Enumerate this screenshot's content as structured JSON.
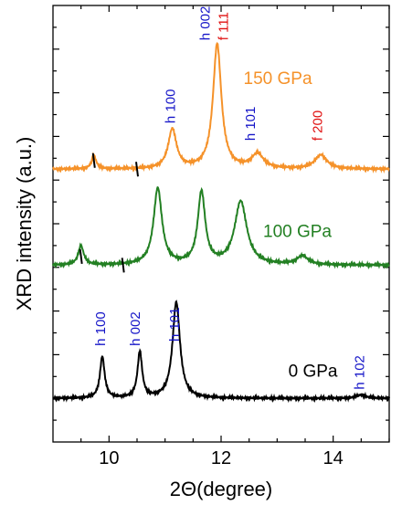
{
  "chart_data": {
    "type": "line",
    "xlabel": "2Θ(degree)",
    "ylabel": "XRD intensity (a.u.)",
    "xlim": [
      9.0,
      15.0
    ],
    "ylim": [
      0,
      100
    ],
    "xticks": [
      10,
      12,
      14
    ],
    "x_tick_labels": [
      "10",
      "12",
      "14"
    ],
    "grid": false,
    "series": [
      {
        "name": "0 GPa",
        "color": "#000000",
        "baseline": 10,
        "peaks": [
          {
            "center": 9.88,
            "height": 9.5,
            "width": 0.05
          },
          {
            "center": 10.55,
            "height": 10.5,
            "width": 0.05
          },
          {
            "center": 11.2,
            "height": 22.0,
            "width": 0.08
          },
          {
            "center": 14.5,
            "height": 0.8,
            "width": 0.1
          }
        ]
      },
      {
        "name": "100 GPa",
        "color": "#238023",
        "baseline": 40.5,
        "peaks": [
          {
            "center": 9.5,
            "height": 4.3,
            "width": 0.06
          },
          {
            "center": 10.87,
            "height": 17.5,
            "width": 0.09
          },
          {
            "center": 11.65,
            "height": 16.5,
            "width": 0.08
          },
          {
            "center": 12.35,
            "height": 14.5,
            "width": 0.13
          },
          {
            "center": 13.45,
            "height": 2.0,
            "width": 0.12
          }
        ]
      },
      {
        "name": "150 GPa",
        "color": "#F5922A",
        "baseline": 62.5,
        "peaks": [
          {
            "center": 9.73,
            "height": 3.0,
            "width": 0.05
          },
          {
            "center": 11.13,
            "height": 9.0,
            "width": 0.09
          },
          {
            "center": 11.93,
            "height": 28.5,
            "width": 0.09
          },
          {
            "center": 12.65,
            "height": 3.3,
            "width": 0.13
          },
          {
            "center": 13.78,
            "height": 3.2,
            "width": 0.13
          }
        ]
      }
    ],
    "markers": [
      {
        "x": 9.73,
        "y": 64.5,
        "color": "#000000"
      },
      {
        "x": 10.5,
        "y": 62.5,
        "color": "#000000"
      },
      {
        "x": 9.5,
        "y": 42.5,
        "color": "#000000"
      },
      {
        "x": 10.25,
        "y": 40.5,
        "color": "#000000"
      }
    ],
    "series_labels": [
      {
        "text": "150 GPa",
        "color": "#F5922A",
        "x": 12.4,
        "y": 82
      },
      {
        "text": "100 GPa",
        "color": "#238023",
        "x": 12.75,
        "y": 47
      },
      {
        "text": "0 GPa",
        "color": "#000000",
        "x": 13.2,
        "y": 15
      }
    ],
    "annotations": [
      {
        "text": "h 100",
        "color": "#1515C8",
        "x": 9.93,
        "y": 22,
        "rotate": -90
      },
      {
        "text": "h 002",
        "color": "#1515C8",
        "x": 10.55,
        "y": 22,
        "rotate": -90
      },
      {
        "text": "h 101",
        "color": "#1515C8",
        "x": 11.25,
        "y": 23,
        "rotate": -90
      },
      {
        "text": "h 102",
        "color": "#1515C8",
        "x": 14.55,
        "y": 12,
        "rotate": -90
      },
      {
        "text": "h 100",
        "color": "#1515C8",
        "x": 11.18,
        "y": 73,
        "rotate": -90
      },
      {
        "text": "h 002",
        "color": "#1515C8",
        "x": 11.8,
        "y": 92,
        "rotate": -90
      },
      {
        "text": "f 111",
        "color": "#E01010",
        "x": 12.12,
        "y": 92,
        "rotate": -90
      },
      {
        "text": "h 101",
        "color": "#1515C8",
        "x": 12.6,
        "y": 69,
        "rotate": -90
      },
      {
        "text": "f 200",
        "color": "#E01010",
        "x": 13.8,
        "y": 69,
        "rotate": -90
      }
    ]
  }
}
